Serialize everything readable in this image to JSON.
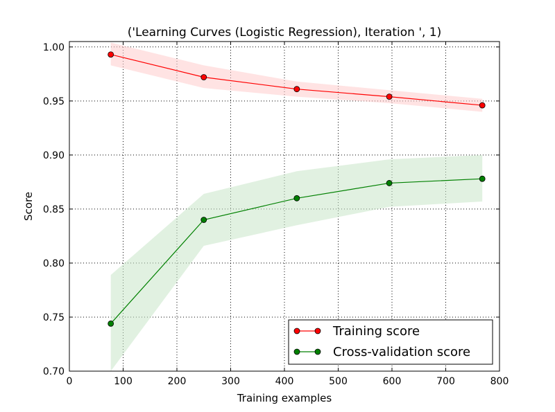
{
  "chart_data": {
    "type": "line",
    "title": "('Learning Curves (Logistic Regression), Iteration ', 1)",
    "xlabel": "Training examples",
    "ylabel": "Score",
    "xlim": [
      0,
      800
    ],
    "ylim": [
      0.7,
      1.005
    ],
    "xticks": [
      0,
      100,
      200,
      300,
      400,
      500,
      600,
      700,
      800
    ],
    "xtick_labels": [
      "0",
      "100",
      "200",
      "300",
      "400",
      "500",
      "600",
      "700",
      "800"
    ],
    "yticks": [
      0.7,
      0.75,
      0.8,
      0.85,
      0.9,
      0.95,
      1.0
    ],
    "ytick_labels": [
      "0.70",
      "0.75",
      "0.80",
      "0.85",
      "0.90",
      "0.95",
      "1.00"
    ],
    "grid": true,
    "legend_position": "lower-right",
    "x": [
      77,
      250,
      423,
      595,
      768
    ],
    "series": [
      {
        "name": "Training score",
        "color": "#ff0000",
        "band_color": "#ffcccc",
        "values": [
          0.993,
          0.972,
          0.961,
          0.954,
          0.946
        ],
        "lower": [
          0.983,
          0.962,
          0.954,
          0.948,
          0.94
        ],
        "upper": [
          1.004,
          0.983,
          0.968,
          0.96,
          0.952
        ]
      },
      {
        "name": "Cross-validation score",
        "color": "#008000",
        "band_color": "#c8e6c8",
        "values": [
          0.744,
          0.84,
          0.86,
          0.874,
          0.878
        ],
        "lower": [
          0.7,
          0.816,
          0.835,
          0.852,
          0.857
        ],
        "upper": [
          0.789,
          0.864,
          0.885,
          0.896,
          0.9
        ]
      }
    ]
  }
}
